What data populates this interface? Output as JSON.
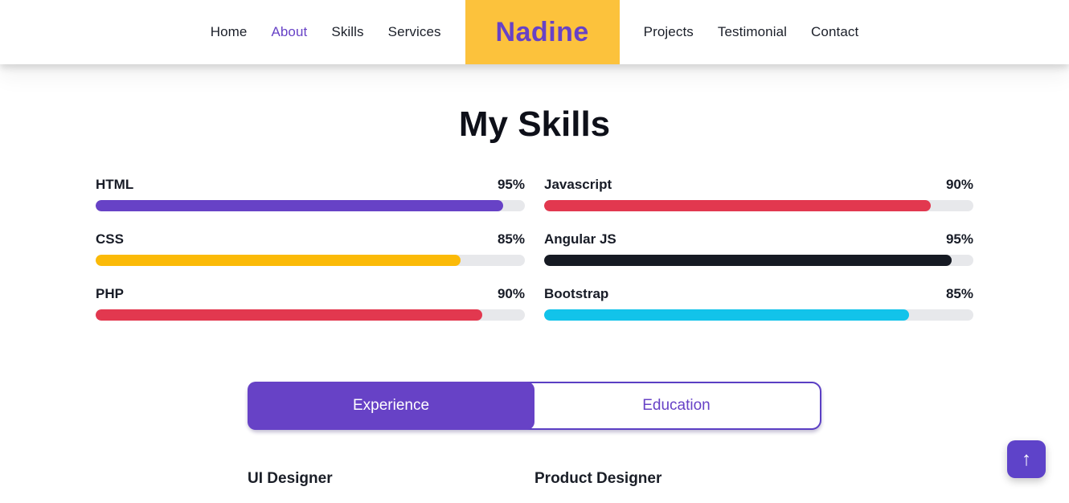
{
  "nav": {
    "items_left": [
      {
        "label": "Home",
        "active": false
      },
      {
        "label": "About",
        "active": true
      },
      {
        "label": "Skills",
        "active": false
      },
      {
        "label": "Services",
        "active": false
      }
    ],
    "logo": "Nadine",
    "items_right": [
      {
        "label": "Projects",
        "active": false
      },
      {
        "label": "Testimonial",
        "active": false
      },
      {
        "label": "Contact",
        "active": false
      }
    ]
  },
  "skills": {
    "title": "My Skills",
    "left": [
      {
        "name": "HTML",
        "percent": 95,
        "color": "#6742c6"
      },
      {
        "name": "CSS",
        "percent": 85,
        "color": "#fbba08"
      },
      {
        "name": "PHP",
        "percent": 90,
        "color": "#e2384f"
      }
    ],
    "right": [
      {
        "name": "Javascript",
        "percent": 90,
        "color": "#e2384f"
      },
      {
        "name": "Angular JS",
        "percent": 95,
        "color": "#161a23"
      },
      {
        "name": "Bootstrap",
        "percent": 85,
        "color": "#12c3ea"
      }
    ]
  },
  "tabs": {
    "active": "Experience",
    "items": [
      {
        "label": "Experience"
      },
      {
        "label": "Education"
      }
    ]
  },
  "positions": [
    {
      "title": "UI Designer"
    },
    {
      "title": "Product Designer"
    }
  ],
  "scroll_top_icon": "↑",
  "colors": {
    "accent": "#6742c6",
    "logo_background": "#fcc23c",
    "progress_track": "#e7e8eb",
    "bar_purple": "#6742c6",
    "bar_yellow": "#fbba08",
    "bar_red": "#e2384f",
    "bar_dark": "#161a23",
    "bar_cyan": "#12c3ea"
  }
}
